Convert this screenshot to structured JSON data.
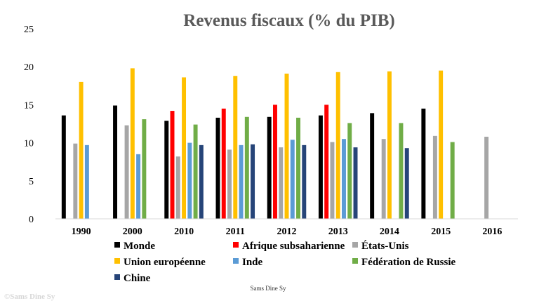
{
  "chart_data": {
    "type": "bar",
    "title": "Revenus fiscaux (% du PIB)",
    "xlabel": "",
    "ylabel": "",
    "ylim": [
      0,
      25
    ],
    "yticks": [
      0,
      5,
      10,
      15,
      20,
      25
    ],
    "grid": false,
    "legend_position": "bottom",
    "categories": [
      "1990",
      "2000",
      "2010",
      "2011",
      "2012",
      "2013",
      "2014",
      "2015",
      "2016"
    ],
    "series": [
      {
        "name": "Monde",
        "color": "#000000",
        "values": [
          13.6,
          14.9,
          12.9,
          13.3,
          13.4,
          13.6,
          13.9,
          14.5,
          null
        ]
      },
      {
        "name": "Afrique subsaharienne",
        "color": "#ff0000",
        "values": [
          null,
          null,
          14.2,
          14.5,
          15.0,
          15.0,
          null,
          null,
          null
        ]
      },
      {
        "name": "États-Unis",
        "color": "#a6a6a6",
        "values": [
          9.9,
          12.3,
          8.2,
          9.1,
          9.4,
          10.1,
          10.5,
          10.9,
          10.8
        ]
      },
      {
        "name": "Union européenne",
        "color": "#ffc000",
        "values": [
          18.0,
          19.8,
          18.6,
          18.8,
          19.1,
          19.3,
          19.4,
          19.5,
          null
        ]
      },
      {
        "name": "Inde",
        "color": "#5b9bd5",
        "values": [
          9.7,
          8.5,
          10.0,
          9.7,
          10.4,
          10.5,
          null,
          null,
          null
        ]
      },
      {
        "name": "Fédération de Russie",
        "color": "#70ad47",
        "values": [
          null,
          13.1,
          12.4,
          13.4,
          13.3,
          12.6,
          12.6,
          10.1,
          null
        ]
      },
      {
        "name": "Chine",
        "color": "#264478",
        "values": [
          null,
          null,
          9.7,
          9.8,
          9.7,
          9.4,
          9.3,
          null,
          null
        ]
      }
    ]
  },
  "credit": "Sams Dine Sy",
  "watermark": "©Sams Dine Sy"
}
